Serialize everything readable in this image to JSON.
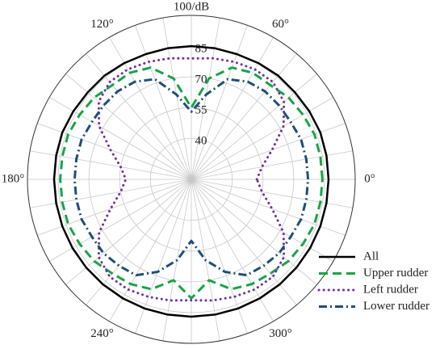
{
  "chart_data": {
    "type": "polar",
    "theta": [
      0,
      10,
      20,
      30,
      40,
      50,
      60,
      70,
      80,
      90,
      100,
      110,
      120,
      130,
      140,
      150,
      160,
      170,
      180,
      190,
      200,
      210,
      220,
      230,
      240,
      250,
      260,
      270,
      280,
      290,
      300,
      310,
      320,
      330,
      340,
      350
    ],
    "thetaticks": [
      {
        "value": 0,
        "label": "0°"
      },
      {
        "value": 60,
        "label": "60°"
      },
      {
        "value": 120,
        "label": "120°"
      },
      {
        "value": 180,
        "label": "180°"
      },
      {
        "value": 240,
        "label": "240°"
      },
      {
        "value": 300,
        "label": "300°"
      }
    ],
    "rlim": [
      20,
      100
    ],
    "rticks": [
      40,
      55,
      70,
      85,
      {
        "value": 100,
        "label": "100/dB"
      }
    ],
    "grid": true,
    "legend": "lower right",
    "series": [
      {
        "name": "All",
        "color": "#000000",
        "values": [
          87,
          87,
          87,
          86.5,
          86,
          86,
          85.5,
          85,
          85,
          85,
          85,
          85,
          85.5,
          86,
          86,
          86.5,
          87,
          87,
          87,
          87,
          87,
          87,
          87,
          87,
          87,
          87,
          87,
          87,
          87,
          87,
          87,
          87,
          87,
          87,
          87,
          87
        ]
      },
      {
        "name": "Upper rudder",
        "color": "#1aa34a",
        "values": [
          84,
          84,
          84,
          83,
          82,
          80,
          80,
          78,
          70,
          55,
          70,
          78,
          80,
          80,
          82,
          83,
          84,
          84,
          84,
          84,
          84,
          83,
          82,
          80,
          79,
          77,
          70,
          78,
          70,
          77,
          79,
          80,
          82,
          83,
          84,
          84
        ]
      },
      {
        "name": "Left rudder",
        "color": "#7030a0",
        "values": [
          52,
          55,
          62,
          72,
          79,
          82,
          82,
          81,
          80,
          79,
          80,
          81,
          82,
          82,
          79,
          72,
          62,
          55,
          52,
          55,
          62,
          72,
          79,
          82,
          82,
          81,
          80,
          79,
          80,
          81,
          82,
          82,
          79,
          72,
          62,
          55
        ]
      },
      {
        "name": "Lower rudder",
        "color": "#1f4e79",
        "values": [
          77,
          77,
          77,
          76,
          76,
          76,
          75,
          72,
          62,
          53,
          62,
          72,
          75,
          76,
          76,
          76,
          77,
          77,
          77,
          77,
          77,
          76,
          76,
          75,
          74,
          68,
          60,
          50,
          60,
          68,
          74,
          75,
          76,
          76,
          77,
          77
        ]
      }
    ]
  }
}
